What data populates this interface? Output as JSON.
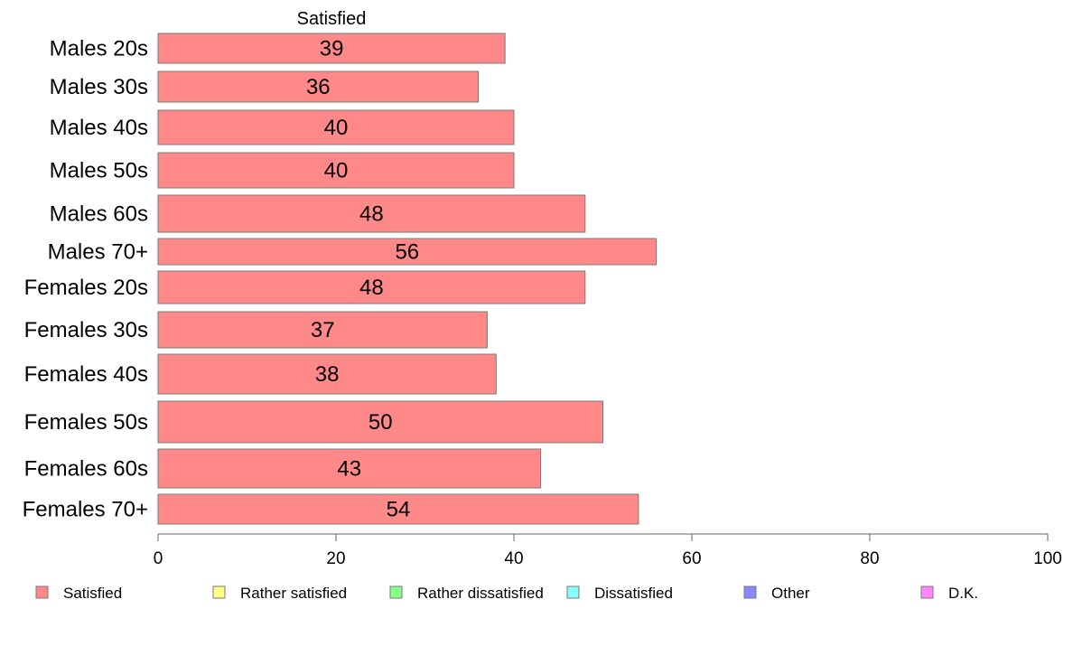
{
  "chart_data": {
    "type": "bar",
    "orientation": "horizontal",
    "stacked": true,
    "series_title": "Satisfied",
    "categories": [
      "Males 20s",
      "Males 30s",
      "Males 40s",
      "Males 50s",
      "Males 60s",
      "Males 70+",
      "Females 20s",
      "Females 30s",
      "Females 40s",
      "Females 50s",
      "Females 60s",
      "Females 70+"
    ],
    "series": [
      {
        "name": "Satisfied",
        "color": "#ff8888",
        "values": [
          39,
          36,
          40,
          40,
          48,
          56,
          48,
          37,
          38,
          50,
          43,
          54
        ],
        "labels": [
          "39",
          "36",
          "40",
          "40",
          "48",
          "56",
          "48",
          "37",
          "38",
          "50",
          "43",
          "54"
        ]
      }
    ],
    "xlim": [
      0,
      100
    ],
    "xticks": [
      "0",
      "20",
      "40",
      "60",
      "80",
      "100"
    ],
    "grid": false,
    "legend": {
      "placement": "bottom",
      "items": [
        {
          "name": "Satisfied",
          "color": "#ff8888"
        },
        {
          "name": "Rather satisfied",
          "color": "#ffff88"
        },
        {
          "name": "Rather dissatisfied",
          "color": "#88ff88"
        },
        {
          "name": "Dissatisfied",
          "color": "#88ffff"
        },
        {
          "name": "Other",
          "color": "#8888ff"
        },
        {
          "name": "D.K.",
          "color": "#ff88ff"
        }
      ]
    }
  }
}
